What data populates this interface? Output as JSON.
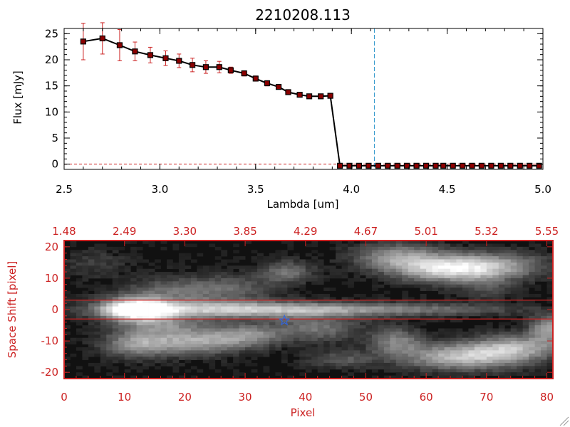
{
  "chart_data": [
    {
      "type": "line",
      "title": "2210208.113",
      "xlabel": "Lambda [um]",
      "ylabel": "Flux [mJy]",
      "xlim": [
        2.5,
        5.0
      ],
      "ylim": [
        -1,
        26
      ],
      "xticks": [
        2.5,
        3.0,
        3.5,
        4.0,
        4.5,
        5.0
      ],
      "xtick_labels": [
        "2.5",
        "3.0",
        "3.5",
        "4.0",
        "4.5",
        "5.0"
      ],
      "yticks": [
        0,
        5,
        10,
        15,
        20,
        25
      ],
      "ytick_labels": [
        "0",
        "5",
        "10",
        "15",
        "20",
        "25"
      ],
      "grid": false,
      "legend": "none",
      "colors": {
        "line": "#000000",
        "marker": "#8b0000",
        "errorbar": "#cc2222",
        "reference_line": "#3399cc",
        "zero_line": "#cc2222"
      },
      "reference_line_x": 4.12,
      "series": [
        {
          "x": [
            2.6,
            2.7,
            2.79,
            2.87,
            2.95,
            3.03,
            3.1,
            3.17,
            3.24,
            3.31,
            3.37,
            3.44,
            3.5,
            3.56,
            3.62,
            3.67,
            3.73,
            3.78,
            3.84,
            3.89,
            3.94,
            3.99,
            4.04,
            4.09,
            4.14,
            4.19,
            4.24,
            4.29,
            4.34,
            4.39,
            4.44,
            4.48,
            4.53,
            4.58,
            4.63,
            4.68,
            4.73,
            4.78,
            4.83,
            4.88,
            4.93,
            4.98
          ],
          "y": [
            23.5,
            24.1,
            22.8,
            21.6,
            20.9,
            20.3,
            19.8,
            19.0,
            18.6,
            18.6,
            18.0,
            17.4,
            16.4,
            15.5,
            14.8,
            13.8,
            13.3,
            13.0,
            13.0,
            13.1,
            -0.3,
            -0.3,
            -0.3,
            -0.3,
            -0.3,
            -0.3,
            -0.3,
            -0.3,
            -0.3,
            -0.3,
            -0.3,
            -0.3,
            -0.3,
            -0.3,
            -0.3,
            -0.3,
            -0.3,
            -0.3,
            -0.3,
            -0.3,
            -0.3,
            -0.3
          ],
          "yerr": [
            3.5,
            3.0,
            3.0,
            1.8,
            1.5,
            1.4,
            1.3,
            1.3,
            1.2,
            1.1,
            0.6,
            0.5,
            0.5,
            0.5,
            0.4,
            0.4,
            0.4,
            0.4,
            0.4,
            0.4,
            0.1,
            0.1,
            0.1,
            0.1,
            0.1,
            0.1,
            0.1,
            0.1,
            0.1,
            0.1,
            0.1,
            0.1,
            0.1,
            0.1,
            0.1,
            0.1,
            0.1,
            0.1,
            0.1,
            0.1,
            0.1,
            0.1
          ]
        }
      ]
    },
    {
      "type": "heatmap",
      "xlabel": "Pixel",
      "ylabel": "Space Shift [pixel]",
      "xlim": [
        0,
        81
      ],
      "ylim": [
        -22,
        22
      ],
      "xticks": [
        0,
        10,
        20,
        30,
        40,
        50,
        60,
        70,
        80
      ],
      "xtick_labels": [
        "0",
        "10",
        "20",
        "30",
        "40",
        "50",
        "60",
        "70",
        "80"
      ],
      "yticks": [
        -20,
        -10,
        0,
        10,
        20
      ],
      "ytick_labels": [
        "-20",
        "-10",
        "0",
        "10",
        "20"
      ],
      "top_xtick_labels": [
        "1.48",
        "2.49",
        "3.30",
        "3.85",
        "4.29",
        "4.67",
        "5.01",
        "5.32",
        "5.55"
      ],
      "colormap": "grayscale",
      "colors": {
        "axes": "#cc2222",
        "star_marker": "#3366dd"
      },
      "aperture_y": [
        -3,
        3
      ],
      "star_marker": {
        "x": 36.5,
        "y": -3.5
      },
      "blobs": [
        {
          "x": 12,
          "y": 0,
          "sx": 4,
          "sy": 2.5,
          "a": 1.0
        },
        {
          "x": 24,
          "y": 0,
          "sx": 12,
          "sy": 2,
          "a": 0.6
        },
        {
          "x": 45,
          "y": 0,
          "sx": 12,
          "sy": 1.6,
          "a": 0.42
        },
        {
          "x": 65,
          "y": 0,
          "sx": 10,
          "sy": 1.3,
          "a": 0.2
        },
        {
          "x": 18,
          "y": 6,
          "sx": 6,
          "sy": 3,
          "a": 0.3
        },
        {
          "x": 28,
          "y": 7,
          "sx": 5,
          "sy": 3,
          "a": 0.25
        },
        {
          "x": 37,
          "y": 12,
          "sx": 3,
          "sy": 2.5,
          "a": 0.35
        },
        {
          "x": 55,
          "y": 17,
          "sx": 5,
          "sy": 3,
          "a": 0.45
        },
        {
          "x": 63,
          "y": 13,
          "sx": 6,
          "sy": 3,
          "a": 0.7
        },
        {
          "x": 72,
          "y": 14,
          "sx": 6,
          "sy": 3,
          "a": 0.45
        },
        {
          "x": 70,
          "y": 7,
          "sx": 3,
          "sy": 3,
          "a": 0.2
        },
        {
          "x": 12,
          "y": -11,
          "sx": 4,
          "sy": 3,
          "a": 0.45
        },
        {
          "x": 22,
          "y": -10,
          "sx": 6,
          "sy": 3,
          "a": 0.55
        },
        {
          "x": 31,
          "y": -8,
          "sx": 4,
          "sy": 2.5,
          "a": 0.35
        },
        {
          "x": 16,
          "y": -5,
          "sx": 5,
          "sy": 2,
          "a": 0.3
        },
        {
          "x": 42,
          "y": -6,
          "sx": 5,
          "sy": 3,
          "a": 0.35
        },
        {
          "x": 55,
          "y": -10,
          "sx": 3,
          "sy": 3,
          "a": 0.4
        },
        {
          "x": 66,
          "y": -15,
          "sx": 7,
          "sy": 3,
          "a": 0.65
        },
        {
          "x": 75,
          "y": -12,
          "sx": 5,
          "sy": 3,
          "a": 0.5
        },
        {
          "x": 80,
          "y": -6,
          "sx": 2,
          "sy": 3,
          "a": 0.5
        },
        {
          "x": 46,
          "y": -16,
          "sx": 4,
          "sy": 2,
          "a": 0.25
        },
        {
          "x": 5,
          "y": 15,
          "sx": 4,
          "sy": 3,
          "a": 0.15
        }
      ]
    }
  ]
}
